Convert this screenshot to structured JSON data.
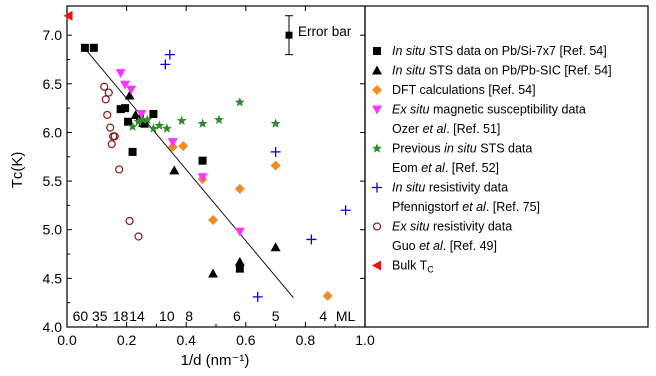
{
  "chart_data": {
    "type": "scatter",
    "xlabel": "1/d (nm⁻¹)",
    "ylabel": "Tᴄ(K)",
    "xlim": [
      0.0,
      1.0
    ],
    "ylim": [
      4.0,
      7.3
    ],
    "x_ticks": [
      "0.0",
      "0.2",
      "0.4",
      "0.6",
      "0.8",
      "1.0"
    ],
    "y_ticks": [
      "4.0",
      "4.5",
      "5.0",
      "5.5",
      "6.0",
      "6.5",
      "7.0"
    ],
    "thickness_labels": [
      {
        "text": "60",
        "x": 0.045
      },
      {
        "text": "35",
        "x": 0.11
      },
      {
        "text": "18",
        "x": 0.18
      },
      {
        "text": "14",
        "x": 0.235
      },
      {
        "text": "10",
        "x": 0.335
      },
      {
        "text": "8",
        "x": 0.41
      },
      {
        "text": "6",
        "x": 0.57
      },
      {
        "text": "5",
        "x": 0.7
      },
      {
        "text": "4",
        "x": 0.86
      },
      {
        "text": "ML",
        "x": 0.935
      }
    ],
    "error_bar": {
      "label": "Error bar",
      "x": 0.745,
      "y": 7.0,
      "yerr": 0.2
    },
    "fit_line": {
      "x": [
        0.05,
        0.76
      ],
      "y": [
        6.9,
        4.3
      ]
    },
    "series": [
      {
        "name": "In situ STS data on Pb/Si-7x7 [Ref. 54]",
        "marker": "square",
        "color": "#000000",
        "x": [
          0.06,
          0.09,
          0.18,
          0.195,
          0.205,
          0.22,
          0.245,
          0.26,
          0.29,
          0.455,
          0.58
        ],
        "y": [
          6.87,
          6.87,
          6.24,
          6.25,
          6.11,
          5.8,
          6.14,
          6.09,
          6.19,
          5.71,
          4.6
        ]
      },
      {
        "name": "In situ STS data on Pb/Pb-SIC [Ref. 54]",
        "marker": "triangle",
        "color": "#000000",
        "x": [
          0.21,
          0.23,
          0.255,
          0.36,
          0.49,
          0.58,
          0.7
        ],
        "y": [
          6.38,
          6.18,
          6.1,
          5.61,
          4.55,
          4.67,
          4.82
        ]
      },
      {
        "name": "DFT calculations [Ref. 54]",
        "marker": "diamond",
        "color": "#f28c1e",
        "x": [
          0.355,
          0.39,
          0.455,
          0.49,
          0.58,
          0.7,
          0.875
        ],
        "y": [
          5.85,
          5.86,
          5.52,
          5.1,
          5.42,
          5.66,
          4.32
        ]
      },
      {
        "name": "Ex situ magnetic susceptibility data",
        "marker": "triangle-down",
        "color": "#ff33ff",
        "x": [
          0.18,
          0.195,
          0.215,
          0.25,
          0.355,
          0.455,
          0.58
        ],
        "y": [
          6.61,
          6.49,
          6.44,
          6.19,
          5.9,
          5.54,
          4.98
        ]
      },
      {
        "name": "Previous in situ STS data",
        "marker": "star",
        "color": "#2e8b2e",
        "x": [
          0.22,
          0.24,
          0.255,
          0.27,
          0.29,
          0.31,
          0.335,
          0.385,
          0.455,
          0.51,
          0.58,
          0.7
        ],
        "y": [
          6.06,
          6.11,
          6.13,
          6.13,
          6.04,
          6.07,
          6.04,
          6.12,
          6.09,
          6.13,
          6.31,
          6.09
        ]
      },
      {
        "name": "In situ resistivity data",
        "marker": "plus",
        "color": "#0000ee",
        "x": [
          0.33,
          0.345,
          0.64,
          0.7,
          0.82,
          0.935
        ],
        "y": [
          6.7,
          6.8,
          4.31,
          5.8,
          4.9,
          5.2
        ]
      },
      {
        "name": "Ex situ resistivity data",
        "marker": "circle",
        "color": "#8b1a1a",
        "x": [
          0.125,
          0.13,
          0.135,
          0.14,
          0.145,
          0.15,
          0.155,
          0.16,
          0.175,
          0.21,
          0.24
        ],
        "y": [
          6.47,
          6.34,
          6.18,
          6.41,
          6.05,
          5.88,
          5.96,
          5.96,
          5.62,
          5.09,
          4.93
        ]
      },
      {
        "name": "Bulk Tc",
        "marker": "triangle-left",
        "color": "#ee1111",
        "x": [
          0.005
        ],
        "y": [
          7.2
        ]
      }
    ],
    "legend": {
      "placement": "right",
      "entries": [
        {
          "marker": "square",
          "color": "#000000",
          "lines": [
            [
              {
                "t": "In situ",
                "i": true
              },
              {
                "t": " STS data on Pb/Si-7x7 [Ref. 54]"
              }
            ]
          ]
        },
        {
          "marker": "triangle",
          "color": "#000000",
          "lines": [
            [
              {
                "t": "In situ",
                "i": true
              },
              {
                "t": " STS data on Pb/Pb-SIC [Ref. 54]"
              }
            ]
          ]
        },
        {
          "marker": "diamond",
          "color": "#f28c1e",
          "lines": [
            [
              {
                "t": "DFT calculations [Ref. 54]"
              }
            ]
          ]
        },
        {
          "marker": "triangle-down",
          "color": "#ff33ff",
          "lines": [
            [
              {
                "t": "Ex situ",
                "i": true
              },
              {
                "t": " magnetic susceptibility data"
              }
            ],
            [
              {
                "t": "Ozer "
              },
              {
                "t": "et al",
                "i": true
              },
              {
                "t": ". [Ref. 51]"
              }
            ]
          ]
        },
        {
          "marker": "star",
          "color": "#2e8b2e",
          "lines": [
            [
              {
                "t": "Previous "
              },
              {
                "t": "in situ",
                "i": true
              },
              {
                "t": " STS data"
              }
            ],
            [
              {
                "t": "Eom "
              },
              {
                "t": "et al",
                "i": true
              },
              {
                "t": ". [Ref. 52]"
              }
            ]
          ]
        },
        {
          "marker": "plus",
          "color": "#0000ee",
          "lines": [
            [
              {
                "t": "In situ",
                "i": true
              },
              {
                "t": " resistivity data"
              }
            ],
            [
              {
                "t": "Pfennigstorf "
              },
              {
                "t": "et al",
                "i": true
              },
              {
                "t": ". [Ref. 75]"
              }
            ]
          ]
        },
        {
          "marker": "circle",
          "color": "#8b1a1a",
          "lines": [
            [
              {
                "t": "Ex situ",
                "i": true
              },
              {
                "t": " resistivity data"
              }
            ],
            [
              {
                "t": "Guo "
              },
              {
                "t": "et al",
                "i": true
              },
              {
                "t": ". [Ref. 49]"
              }
            ]
          ]
        },
        {
          "marker": "triangle-left",
          "color": "#ee1111",
          "lines": [
            [
              {
                "t": "Bulk T"
              },
              {
                "t": "C",
                "sub": true
              }
            ]
          ]
        }
      ]
    }
  }
}
